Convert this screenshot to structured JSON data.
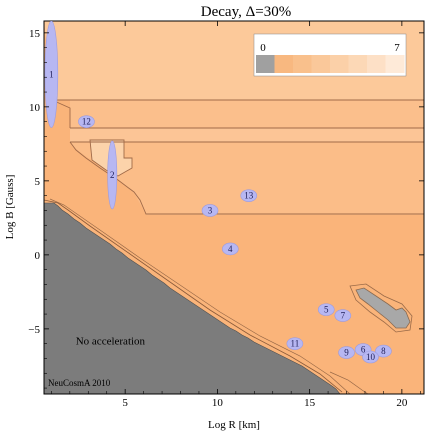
{
  "chart_data": {
    "type": "heatmap",
    "title": "Decay, Δ=30%",
    "xlabel": "Log R [km]",
    "ylabel": "Log B [Gauss]",
    "xlim": [
      0.6,
      21.2
    ],
    "ylim": [
      -9.4,
      15.8
    ],
    "xticks": [
      5,
      10,
      15,
      20
    ],
    "yticks": [
      -5,
      0,
      5,
      10,
      15
    ],
    "colorbar": {
      "min": 0,
      "max": 7,
      "min_label": "0",
      "max_label": "7",
      "colors": [
        "#a0a0a0",
        "#f8b880",
        "#f9c08c",
        "#fac89a",
        "#fbd0a8",
        "#fcd8b6",
        "#fde0c6",
        "#feead8"
      ]
    },
    "regions": [
      {
        "label": "No acceleration",
        "x": 4.2,
        "y": -5.8
      }
    ],
    "sources": [
      {
        "id": "1",
        "x": 1.0,
        "y": 12.2,
        "rx": 0.35,
        "ry": 3.6
      },
      {
        "id": "2",
        "x": 4.3,
        "y": 5.4,
        "rx": 0.25,
        "ry": 2.3
      },
      {
        "id": "3",
        "x": 9.6,
        "y": 3.0
      },
      {
        "id": "4",
        "x": 10.7,
        "y": 0.4
      },
      {
        "id": "5",
        "x": 15.9,
        "y": -3.7
      },
      {
        "id": "6",
        "x": 17.9,
        "y": -6.4
      },
      {
        "id": "7",
        "x": 16.8,
        "y": -4.1
      },
      {
        "id": "8",
        "x": 19.0,
        "y": -6.5
      },
      {
        "id": "9",
        "x": 17.0,
        "y": -6.6
      },
      {
        "id": "10",
        "x": 18.3,
        "y": -6.9
      },
      {
        "id": "11",
        "x": 14.2,
        "y": -6.0
      },
      {
        "id": "12",
        "x": 2.9,
        "y": 9.0
      },
      {
        "id": "13",
        "x": 11.7,
        "y": 4.0
      }
    ],
    "annotation": "NeuCosmA 2010"
  }
}
